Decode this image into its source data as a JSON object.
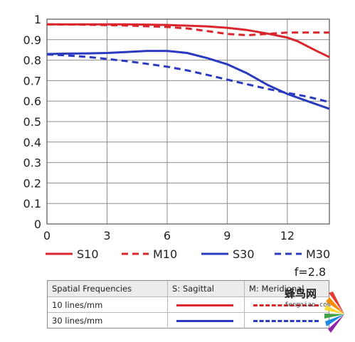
{
  "chart_data": {
    "type": "line",
    "x_ticks": [
      0,
      3,
      6,
      9,
      12
    ],
    "y_ticks": [
      0,
      0.1,
      0.2,
      0.3,
      0.4,
      0.5,
      0.6,
      0.7,
      0.8,
      0.9,
      1
    ],
    "y_tick_labels": [
      "0",
      "0.1",
      "0.2",
      "0.3",
      "0.4",
      "0.5",
      "0.6",
      "0.7",
      "0.8",
      "0.9",
      "1"
    ],
    "xlim": [
      0,
      14.1
    ],
    "ylim": [
      0,
      1
    ],
    "grid": true,
    "legend_position": "bottom",
    "series": [
      {
        "name": "S10",
        "color": "#d9262c",
        "dash": false,
        "x": [
          0,
          2,
          4,
          6,
          8,
          9,
          10,
          11,
          12,
          12.5,
          13,
          13.5,
          14.1
        ],
        "y": [
          0.975,
          0.975,
          0.975,
          0.972,
          0.965,
          0.958,
          0.947,
          0.93,
          0.91,
          0.893,
          0.868,
          0.843,
          0.815
        ]
      },
      {
        "name": "M10",
        "color": "#d9262c",
        "dash": true,
        "x": [
          0,
          2,
          4,
          6,
          7,
          8,
          9,
          10,
          11,
          12,
          13,
          14.1
        ],
        "y": [
          0.975,
          0.973,
          0.969,
          0.962,
          0.955,
          0.942,
          0.928,
          0.922,
          0.928,
          0.935,
          0.935,
          0.935
        ]
      },
      {
        "name": "S30",
        "color": "#2a3bbf",
        "dash": false,
        "x": [
          0,
          1,
          2,
          3,
          4,
          5,
          6,
          7,
          8,
          9,
          10,
          11,
          12,
          13,
          14.1
        ],
        "y": [
          0.83,
          0.832,
          0.833,
          0.835,
          0.84,
          0.845,
          0.845,
          0.835,
          0.81,
          0.78,
          0.735,
          0.68,
          0.635,
          0.6,
          0.562
        ]
      },
      {
        "name": "M30",
        "color": "#2a3bbf",
        "dash": true,
        "x": [
          0,
          1,
          2,
          3,
          4,
          5,
          6,
          7,
          8,
          9,
          10,
          11,
          12,
          13,
          14.1
        ],
        "y": [
          0.828,
          0.823,
          0.816,
          0.806,
          0.795,
          0.782,
          0.768,
          0.75,
          0.728,
          0.705,
          0.682,
          0.66,
          0.64,
          0.622,
          0.595
        ]
      }
    ],
    "annotation": "f=2.8"
  },
  "table": {
    "headers": [
      "Spatial Frequencies",
      "S: Sagittal",
      "M: Meridional"
    ],
    "rows": [
      {
        "label": "10 lines/mm",
        "color": "#d9262c"
      },
      {
        "label": "30 lines/mm",
        "color": "#2a3bbf"
      }
    ]
  },
  "watermark": {
    "text": "蜂鸟网",
    "url": "fengniao.com"
  }
}
